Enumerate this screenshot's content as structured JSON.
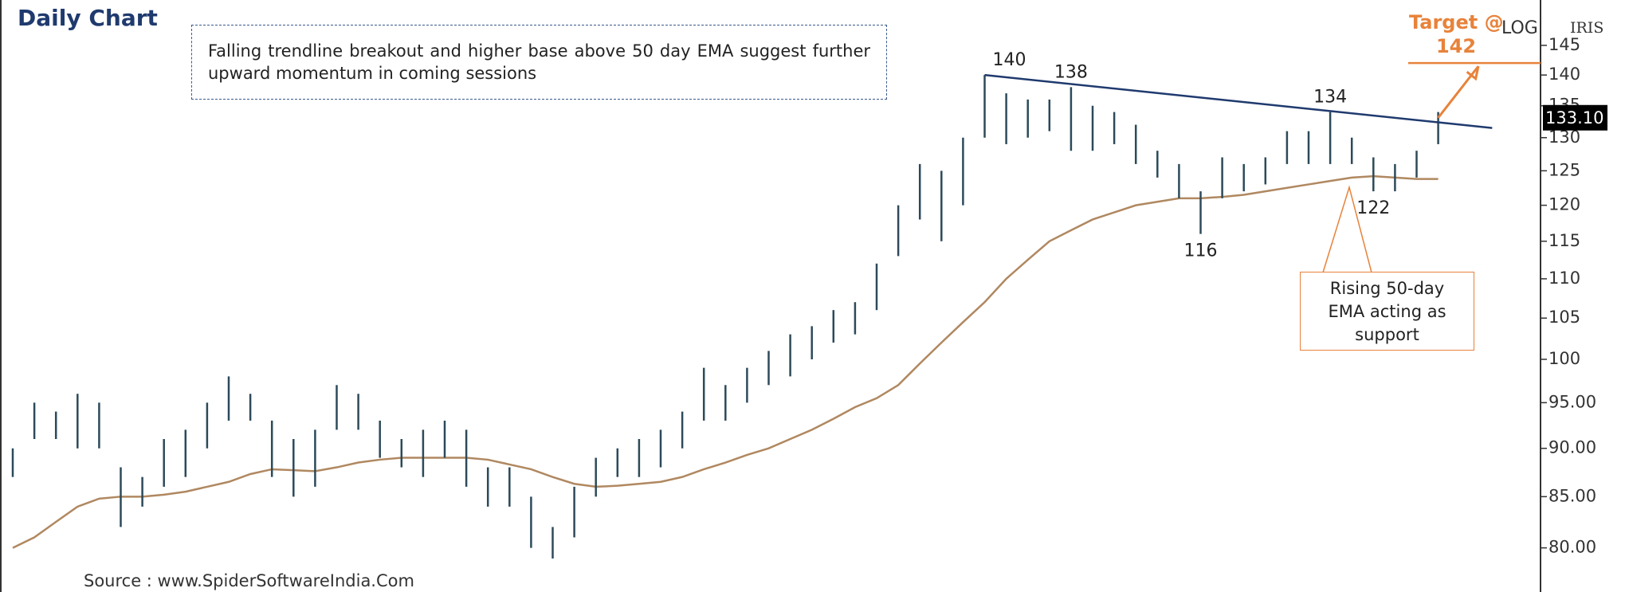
{
  "chart_data": {
    "type": "ohlc",
    "title": "Daily Chart",
    "note": "Falling trendline breakout and higher base above 50 day EMA suggest further  upward momentum in coming sessions",
    "callout": "Rising 50-day EMA acting as support",
    "target_label": "Target @",
    "target": 142,
    "scale_label": "LOG",
    "symbol": "IRIS",
    "last_price": {
      "value": 133.1,
      "label": "133.10"
    },
    "source": "Source : www.SpiderSoftwareIndia.Com",
    "log_scale": true,
    "ylim": [
      76,
      153
    ],
    "yticks": [
      145,
      140,
      135,
      130,
      125,
      120,
      115,
      110,
      105,
      100,
      {
        "value": 95,
        "label": "95.00"
      },
      {
        "value": 90,
        "label": "90.00"
      },
      {
        "value": 85,
        "label": "85.00"
      },
      {
        "value": 80,
        "label": "80.00"
      }
    ],
    "bar_color": "#2c4a5a",
    "high": [
      90,
      95,
      94,
      96,
      95,
      88,
      87,
      91,
      92,
      95,
      98,
      96,
      93,
      91,
      92,
      97,
      96,
      93,
      91,
      92,
      93,
      92,
      88,
      88,
      85,
      82,
      86,
      89,
      90,
      91,
      92,
      94,
      99,
      97,
      99,
      101,
      103,
      104,
      106,
      107,
      112,
      120,
      126,
      125,
      130,
      140,
      137,
      136,
      136,
      138,
      135,
      134,
      132,
      128,
      126,
      122,
      127,
      126,
      127,
      131,
      131,
      134,
      130,
      127,
      126,
      128,
      134
    ],
    "low": [
      87,
      91,
      91,
      90,
      90,
      82,
      84,
      86,
      87,
      90,
      93,
      93,
      87,
      85,
      86,
      92,
      92,
      89,
      88,
      87,
      89,
      86,
      84,
      84,
      80,
      79,
      81,
      85,
      87,
      87,
      88,
      90,
      93,
      93,
      95,
      97,
      98,
      100,
      102,
      103,
      106,
      113,
      118,
      115,
      120,
      130,
      129,
      130,
      131,
      128,
      128,
      129,
      126,
      124,
      121,
      116,
      121,
      122,
      123,
      126,
      126,
      126,
      126,
      122,
      122,
      124,
      129
    ],
    "ema": {
      "color": "#b08860",
      "values": [
        80,
        81,
        82.5,
        84,
        84.8,
        85,
        85,
        85.2,
        85.5,
        86,
        86.5,
        87.3,
        87.8,
        87.7,
        87.6,
        88,
        88.5,
        88.8,
        89,
        89,
        89,
        89,
        88.8,
        88.3,
        87.8,
        87,
        86.3,
        86,
        86.1,
        86.3,
        86.5,
        87,
        87.8,
        88.5,
        89.3,
        90,
        91,
        92,
        93.2,
        94.5,
        95.5,
        97,
        99.5,
        102,
        104.5,
        107,
        110,
        112.5,
        115,
        116.5,
        118,
        119,
        120,
        120.5,
        121,
        121,
        121.2,
        121.5,
        122,
        122.5,
        123,
        123.5,
        124,
        124.2,
        124,
        123.8,
        123.8
      ]
    },
    "trendline": {
      "color": "#1f3a6e",
      "x": [
        45,
        68.5
      ],
      "values": [
        140,
        131.5
      ]
    },
    "swing_points": [
      {
        "index": 45,
        "value": 140
      },
      {
        "index": 49,
        "value": 138
      },
      {
        "index": 61,
        "value": 134
      },
      {
        "index": 55,
        "value": 116
      },
      {
        "index": 63,
        "value": 122
      }
    ]
  }
}
